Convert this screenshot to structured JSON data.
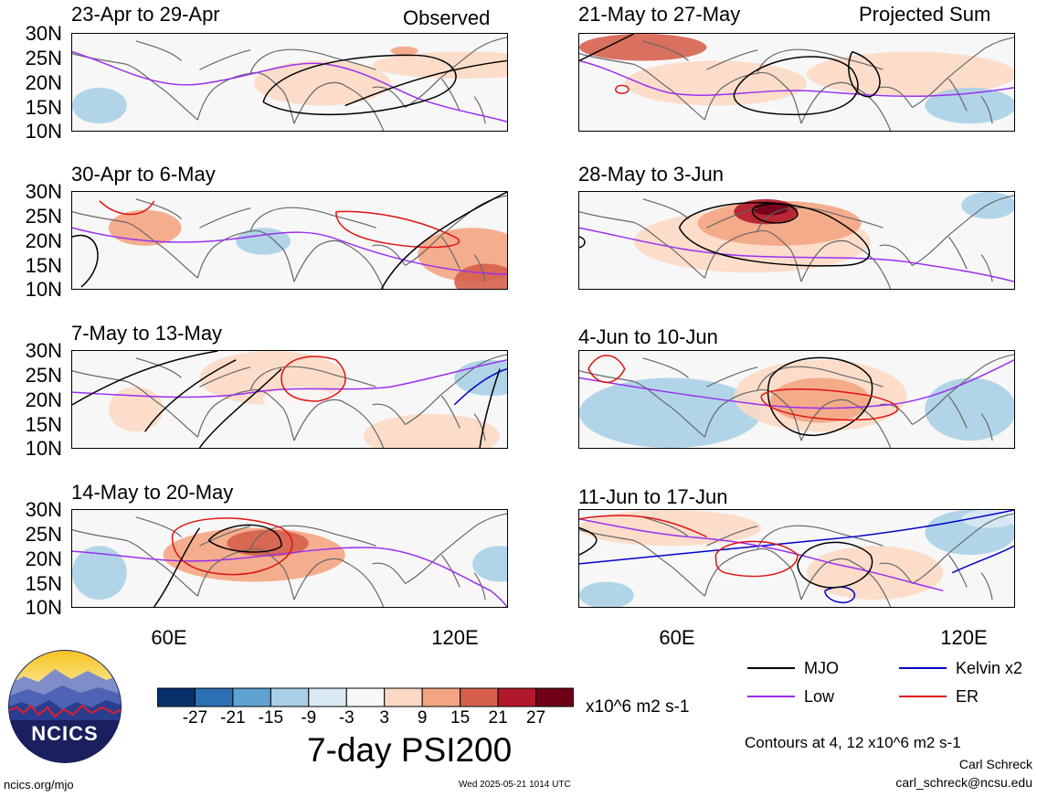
{
  "header": {
    "left_label": "Observed",
    "right_label": "Projected Sum"
  },
  "panels": [
    {
      "title": "23-Apr to 29-Apr",
      "variant": 0
    },
    {
      "title": "30-Apr to 6-May",
      "variant": 1
    },
    {
      "title": "7-May to 13-May",
      "variant": 2
    },
    {
      "title": "14-May to 20-May",
      "variant": 3
    },
    {
      "title": "21-May to 27-May",
      "variant": 4
    },
    {
      "title": "28-May to 3-Jun",
      "variant": 5
    },
    {
      "title": "4-Jun to 10-Jun",
      "variant": 6
    },
    {
      "title": "11-Jun to 17-Jun",
      "variant": 7
    }
  ],
  "lat_labels": [
    "30N",
    "25N",
    "20N",
    "15N",
    "10N"
  ],
  "lon_labels": [
    "60E",
    "120E"
  ],
  "colorbar": {
    "colors": [
      "#08306b",
      "#2c6fb3",
      "#5fa2d0",
      "#a8cfe6",
      "#d9e9f4",
      "#f7f7f7",
      "#fbd9c4",
      "#f3a582",
      "#d6604d",
      "#b2182b",
      "#6f0018"
    ],
    "tick_labels": [
      "-27",
      "-21",
      "-15",
      "-9",
      "-3",
      "3",
      "9",
      "15",
      "21",
      "27"
    ],
    "units": "x10^6 m2 s-1",
    "title": "7-day PSI200"
  },
  "legend": {
    "items": [
      {
        "label": "MJO",
        "color": "#000000"
      },
      {
        "label": "Kelvin x2",
        "color": "#0000cc"
      },
      {
        "label": "Low",
        "color": "#9a2ff0"
      },
      {
        "label": "ER",
        "color": "#e01010"
      }
    ],
    "contour_note": "Contours at 4, 12 x10^6 m2 s-1",
    "author": "Carl Schreck",
    "email": "carl_schreck@ncsu.edu"
  },
  "footer": {
    "url": "ncics.org/mjo",
    "timestamp": "Wed 2025-05-21 1014 UTC"
  },
  "logo": {
    "text": "NCICS"
  }
}
